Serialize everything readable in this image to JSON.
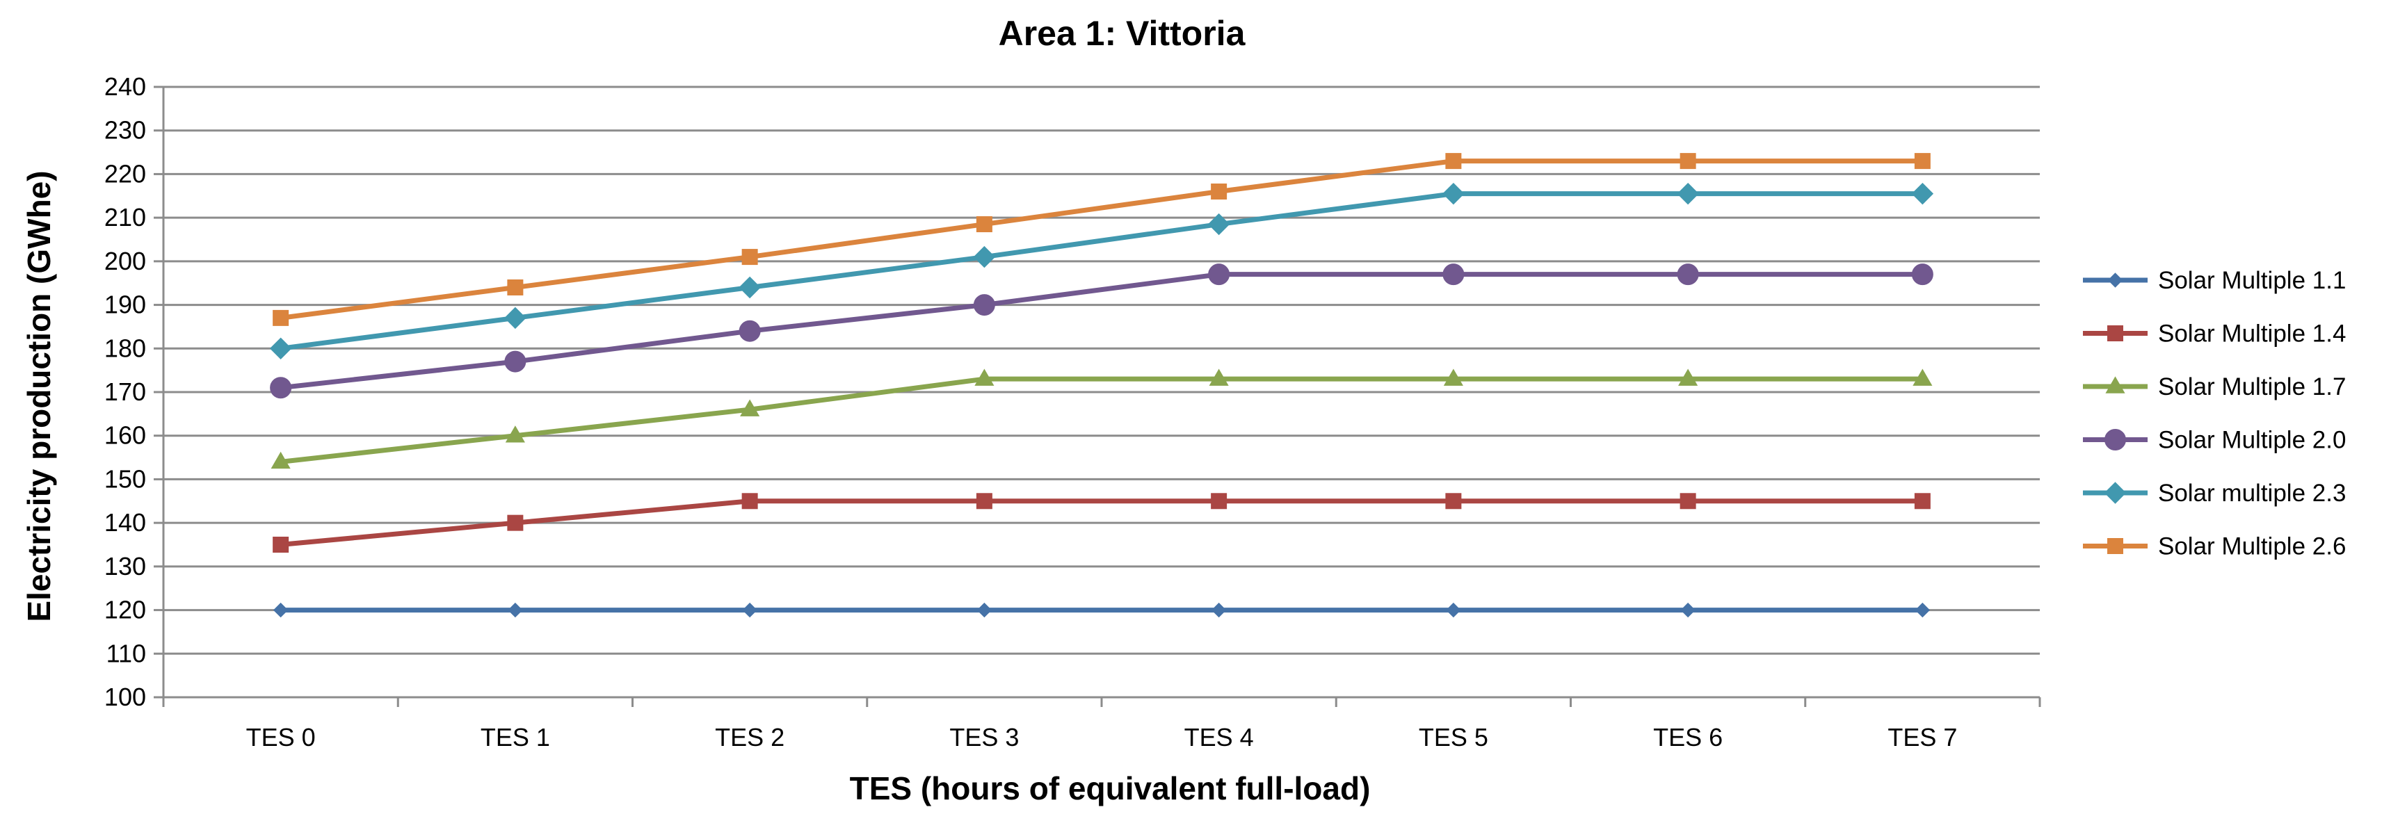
{
  "chart_data": {
    "type": "line",
    "title": "Area 1: Vittoria",
    "xlabel": "TES (hours of equivalent full-load)",
    "ylabel": "Electricity production (GWhe)",
    "categories": [
      "TES 0",
      "TES 1",
      "TES 2",
      "TES 3",
      "TES 4",
      "TES 5",
      "TES 6",
      "TES 7"
    ],
    "ylim": [
      100,
      240
    ],
    "ytick_step": 10,
    "grid": true,
    "legend_position": "right",
    "series": [
      {
        "name": "Solar Multiple  1.1",
        "color": "#4572A7",
        "marker": "diamond-small",
        "values": [
          120,
          120,
          120,
          120,
          120,
          120,
          120,
          120
        ]
      },
      {
        "name": "Solar Multiple  1.4",
        "color": "#AA4643",
        "marker": "square",
        "values": [
          135,
          140,
          145,
          145,
          145,
          145,
          145,
          145
        ]
      },
      {
        "name": "Solar Multiple  1.7",
        "color": "#89A54E",
        "marker": "triangle",
        "values": [
          154,
          160,
          166,
          173,
          173,
          173,
          173,
          173
        ]
      },
      {
        "name": "Solar Multiple  2.0",
        "color": "#71588F",
        "marker": "circle",
        "values": [
          171,
          177,
          184,
          190,
          197,
          197,
          197,
          197
        ]
      },
      {
        "name": "Solar multiple  2.3",
        "color": "#4198AF",
        "marker": "diamond",
        "values": [
          180,
          187,
          194,
          201,
          208.5,
          215.5,
          215.5,
          215.5
        ]
      },
      {
        "name": "Solar Multiple  2.6",
        "color": "#DB843D",
        "marker": "square",
        "values": [
          187,
          194,
          201,
          208.5,
          216,
          223,
          223,
          223
        ]
      }
    ]
  }
}
